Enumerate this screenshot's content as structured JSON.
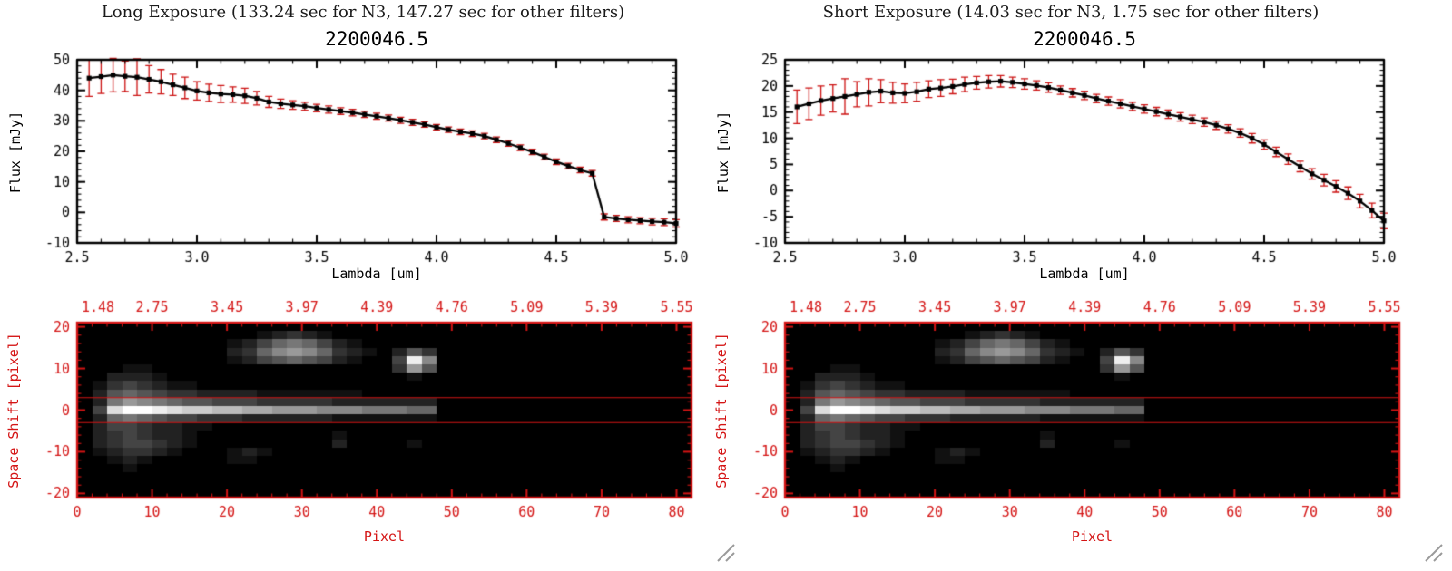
{
  "page": {
    "background": "#ffffff",
    "axis_red": "#d41414",
    "error_red": "#cc1111",
    "grip_gray": "#9a9a9a"
  },
  "panels": [
    {
      "header": "Long Exposure (133.24 sec for N3, 147.27 sec for other filters)"
    },
    {
      "header": "Short Exposure (14.03 sec for N3, 1.75 sec for other filters)"
    }
  ],
  "chart_data": [
    {
      "id": "long-exposure-spectrum",
      "type": "line",
      "title": "2200046.5",
      "xlabel": "Lambda [um]",
      "ylabel": "Flux [mJy]",
      "xlim": [
        2.5,
        5.0
      ],
      "ylim": [
        -10,
        50
      ],
      "xticks": [
        "2.5",
        "3.0",
        "3.5",
        "4.0",
        "4.5",
        "5.0"
      ],
      "yticks": [
        "-10",
        "0",
        "10",
        "20",
        "30",
        "40",
        "50"
      ],
      "x_minor": 0.1,
      "y_minor": 2,
      "axis_color": "#000000",
      "line_color": "#000000",
      "marker": "square",
      "error_color": "#cc1111",
      "x": [
        2.55,
        2.6,
        2.65,
        2.7,
        2.75,
        2.8,
        2.85,
        2.9,
        2.95,
        3.0,
        3.05,
        3.1,
        3.15,
        3.2,
        3.25,
        3.3,
        3.35,
        3.4,
        3.45,
        3.5,
        3.55,
        3.6,
        3.65,
        3.7,
        3.75,
        3.8,
        3.85,
        3.9,
        3.95,
        4.0,
        4.05,
        4.1,
        4.15,
        4.2,
        4.25,
        4.3,
        4.35,
        4.4,
        4.45,
        4.5,
        4.55,
        4.6,
        4.65,
        4.7,
        4.75,
        4.8,
        4.85,
        4.9,
        4.95,
        5.0
      ],
      "y": [
        44,
        44.5,
        45,
        44.6,
        44.3,
        43.6,
        42.8,
        41.8,
        40.8,
        39.8,
        39.2,
        38.8,
        38.6,
        38.2,
        37.4,
        36.2,
        35.6,
        35.2,
        34.8,
        34.2,
        33.7,
        33.2,
        32.7,
        32.1,
        31.5,
        30.9,
        30.2,
        29.5,
        28.8,
        27.9,
        27.1,
        26.4,
        25.8,
        25,
        23.8,
        22.6,
        21.2,
        19.8,
        18.2,
        16.6,
        15.2,
        13.9,
        12.8,
        -1.5,
        -2,
        -2.4,
        -2.7,
        -3,
        -3.2,
        -3.6
      ],
      "yerr": [
        6,
        5.5,
        5.5,
        5,
        6,
        4.5,
        4,
        3.5,
        3.5,
        3,
        2.8,
        2.8,
        2.5,
        2.5,
        2.2,
        1.8,
        1.5,
        1.4,
        1.3,
        1.2,
        1.2,
        1.1,
        1.1,
        1,
        1,
        1,
        1,
        1,
        0.9,
        0.9,
        0.9,
        0.9,
        0.9,
        0.9,
        0.9,
        0.9,
        0.9,
        0.9,
        0.9,
        0.9,
        0.9,
        0.9,
        0.9,
        1,
        1,
        1,
        1,
        1.1,
        1.1,
        1.2
      ]
    },
    {
      "id": "long-exposure-detector-image",
      "type": "heatmap",
      "xlabel": "Pixel",
      "ylabel": "Space Shift [pixel]",
      "xlim": [
        0,
        82
      ],
      "ylim": [
        -21,
        21
      ],
      "xticks": [
        "0",
        "10",
        "20",
        "30",
        "40",
        "50",
        "60",
        "70",
        "80"
      ],
      "yticks": [
        "-20",
        "-10",
        "0",
        "10",
        "20"
      ],
      "x_minor": 2,
      "y_minor": 2,
      "top_axis_labels": [
        "1.48",
        "2.75",
        "3.45",
        "3.97",
        "4.39",
        "4.76",
        "5.09",
        "5.39",
        "5.55"
      ],
      "axis_color": "#d41414",
      "aperture_lines_y": [
        3,
        -3
      ],
      "cell_size": 2,
      "rows": [
        "000000000000000000000000000000000000000000",
        "000000000000123210000000000000000000000000",
        "000000000012467642100000000000000000000000",
        "000000000023689863210253000000000000000000",
        "0000000000124565421004e8000000000000000000",
        "000110000000000000000395000000000000000000",
        "002221000000000000000010000000000000000000",
        "013432110000000000000000000000000000000000",
        "025654332222111111100000000000000000000000",
        "027987655444333332222222000000000000000000",
        "04dffedccbbaa99988877766000000000000000000",
        "026765443332222221111111000000000000000000",
        "024432211000000000000000000000000000000000",
        "023432210000000001000000000000000000000000",
        "023443210000000002000010000000000000000000",
        "012332100012100000000000000000000000000000",
        "001210000011000000000000000000000000000000",
        "000100000000000000000000000000000000000000",
        "000000000000000000000000000000000000000000",
        "000000000000000000000000000000000000000000",
        "000000000000000000000000000000000000000000"
      ]
    },
    {
      "id": "short-exposure-spectrum",
      "type": "line",
      "title": "2200046.5",
      "xlabel": "Lambda [um]",
      "ylabel": "Flux [mJy]",
      "xlim": [
        2.5,
        5.0
      ],
      "ylim": [
        -10,
        25
      ],
      "xticks": [
        "2.5",
        "3.0",
        "3.5",
        "4.0",
        "4.5",
        "5.0"
      ],
      "yticks": [
        "-10",
        "-5",
        "0",
        "5",
        "10",
        "15",
        "20",
        "25"
      ],
      "x_minor": 0.1,
      "y_minor": 1,
      "axis_color": "#000000",
      "line_color": "#000000",
      "marker": "square",
      "error_color": "#cc1111",
      "x": [
        2.55,
        2.6,
        2.65,
        2.7,
        2.75,
        2.8,
        2.85,
        2.9,
        2.95,
        3.0,
        3.05,
        3.1,
        3.15,
        3.2,
        3.25,
        3.3,
        3.35,
        3.4,
        3.45,
        3.5,
        3.55,
        3.6,
        3.65,
        3.7,
        3.75,
        3.8,
        3.85,
        3.9,
        3.95,
        4.0,
        4.05,
        4.1,
        4.15,
        4.2,
        4.25,
        4.3,
        4.35,
        4.4,
        4.45,
        4.5,
        4.55,
        4.6,
        4.65,
        4.7,
        4.75,
        4.8,
        4.85,
        4.9,
        4.95,
        5.0
      ],
      "y": [
        16,
        16.6,
        17.2,
        17.6,
        18,
        18.4,
        18.8,
        19,
        18.7,
        18.6,
        18.9,
        19.4,
        19.6,
        19.9,
        20.3,
        20.6,
        20.8,
        20.9,
        20.7,
        20.4,
        20.1,
        19.7,
        19.2,
        18.7,
        18.2,
        17.6,
        17.1,
        16.6,
        16.1,
        15.6,
        15.1,
        14.6,
        14.1,
        13.6,
        13.1,
        12.5,
        11.8,
        11,
        10,
        8.8,
        7.4,
        6,
        4.6,
        3.2,
        2,
        0.8,
        -0.5,
        -2,
        -3.8,
        -5.8
      ],
      "yerr": [
        3.2,
        3,
        2.8,
        2.6,
        3.4,
        2.4,
        2.6,
        2.2,
        2,
        1.8,
        1.8,
        1.6,
        1.6,
        1.4,
        1.4,
        1.2,
        1.2,
        1.1,
        1,
        1,
        0.9,
        0.9,
        0.8,
        0.8,
        0.8,
        0.8,
        0.8,
        0.8,
        0.8,
        0.8,
        0.8,
        0.8,
        0.8,
        0.8,
        0.8,
        0.8,
        0.8,
        0.8,
        0.9,
        0.9,
        0.9,
        1,
        1,
        1,
        1.1,
        1.1,
        1.2,
        1.3,
        1.4,
        1.5
      ]
    },
    {
      "id": "short-exposure-detector-image",
      "type": "heatmap",
      "xlabel": "Pixel",
      "ylabel": "Space Shift [pixel]",
      "xlim": [
        0,
        82
      ],
      "ylim": [
        -21,
        21
      ],
      "xticks": [
        "0",
        "10",
        "20",
        "30",
        "40",
        "50",
        "60",
        "70",
        "80"
      ],
      "yticks": [
        "-20",
        "-10",
        "0",
        "10",
        "20"
      ],
      "x_minor": 2,
      "y_minor": 2,
      "top_axis_labels": [
        "1.48",
        "2.75",
        "3.45",
        "3.97",
        "4.39",
        "4.76",
        "5.09",
        "5.39",
        "5.55"
      ],
      "axis_color": "#d41414",
      "aperture_lines_y": [
        3,
        -3
      ],
      "cell_size": 2,
      "rows": [
        "000000000000000000000000000000000000000000",
        "000000000000123210000000000000000000000000",
        "000000000012467642100000000000000000000000",
        "000000000023689863210253000000000000000000",
        "0000000000124565421004e8000000000000000000",
        "000110000000000000000395000000000000000000",
        "002221000000000000000010000000000000000000",
        "013432110000000000000000000000000000000000",
        "025654332222111111100000000000000000000000",
        "027987655444333332222222000000000000000000",
        "04dffedccbbaa99988877766000000000000000000",
        "026765443332222221111111000000000000000000",
        "024432211000000000000000000000000000000000",
        "023432210000000001000000000000000000000000",
        "023443210000000002000010000000000000000000",
        "012332100012100000000000000000000000000000",
        "001210000011000000000000000000000000000000",
        "000100000000000000000000000000000000000000",
        "000000000000000000000000000000000000000000",
        "000000000000000000000000000000000000000000",
        "000000000000000000000000000000000000000000"
      ]
    }
  ]
}
